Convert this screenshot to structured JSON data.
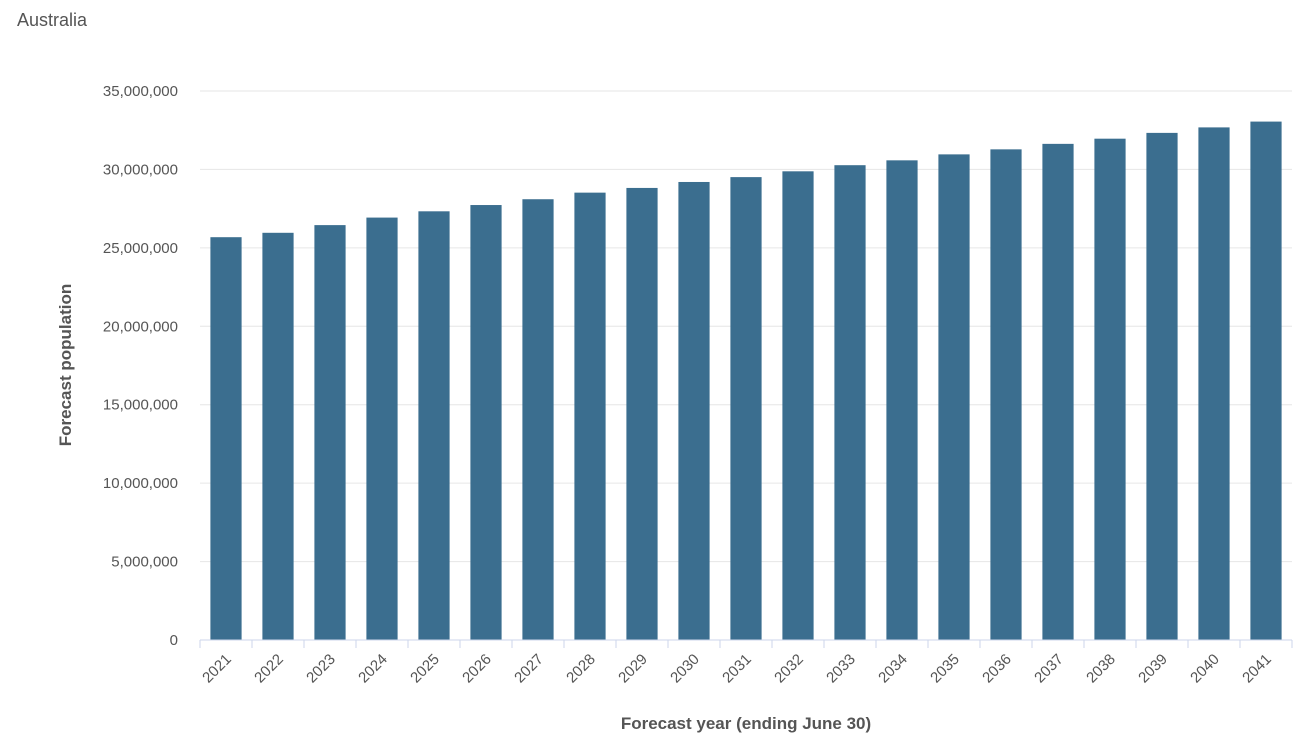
{
  "chart_data": {
    "type": "bar",
    "subtitle": "Australia",
    "xlabel": "Forecast year (ending June 30)",
    "ylabel": "Forecast population",
    "ylim": [
      0,
      35000000
    ],
    "yticks": [
      0,
      5000000,
      10000000,
      15000000,
      20000000,
      25000000,
      30000000,
      35000000
    ],
    "ytick_labels": [
      "0",
      "5,000,000",
      "10,000,000",
      "15,000,000",
      "20,000,000",
      "25,000,000",
      "30,000,000",
      "35,000,000"
    ],
    "categories": [
      "2021",
      "2022",
      "2023",
      "2024",
      "2025",
      "2026",
      "2027",
      "2028",
      "2029",
      "2030",
      "2031",
      "2032",
      "2033",
      "2034",
      "2035",
      "2036",
      "2037",
      "2038",
      "2039",
      "2040",
      "2041"
    ],
    "values": [
      25680000,
      25960000,
      26450000,
      26930000,
      27330000,
      27730000,
      28100000,
      28520000,
      28820000,
      29200000,
      29510000,
      29880000,
      30270000,
      30580000,
      30960000,
      31280000,
      31630000,
      31960000,
      32330000,
      32680000,
      33050000
    ],
    "bar_color": "#3b6e8f",
    "grid": true
  }
}
